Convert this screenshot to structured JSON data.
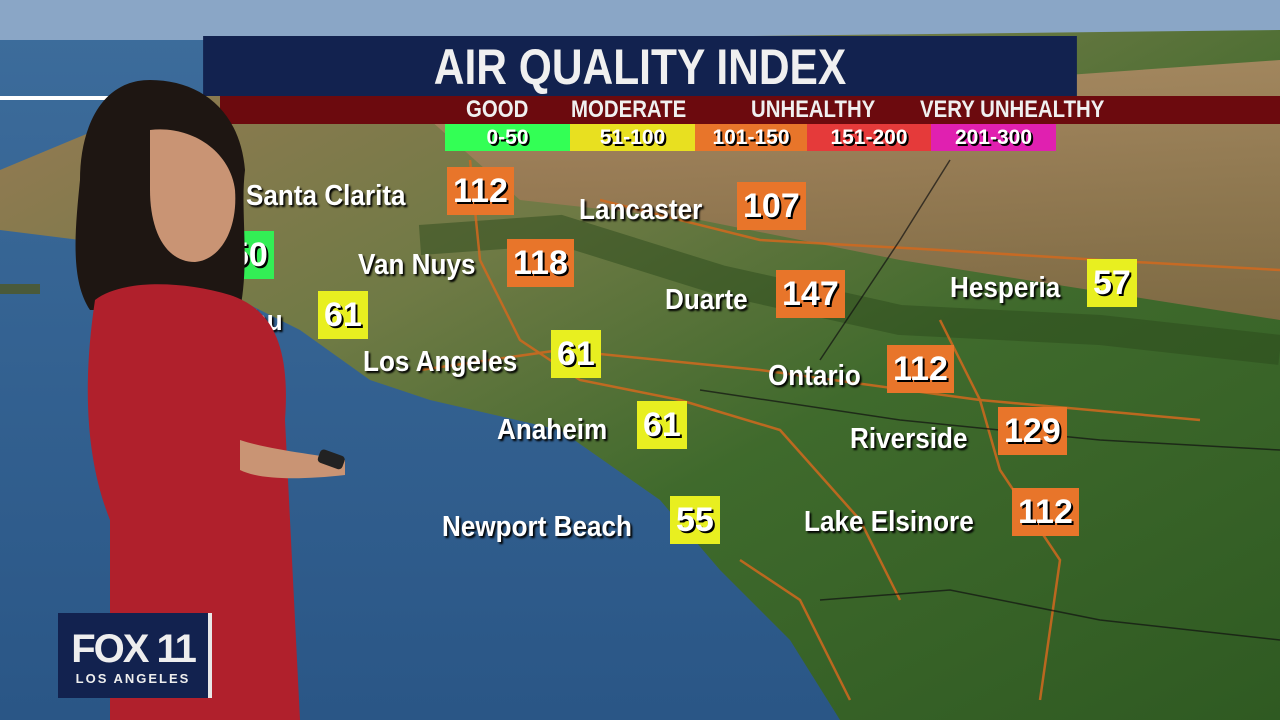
{
  "title": "AIR QUALITY INDEX",
  "colors": {
    "title_bg": "#12224f",
    "category_bg": "#6c0a0e",
    "good": "#33ff55",
    "moderate": "#e8e020",
    "unhealthy_sg": "#e8752a",
    "unhealthy": "#e53a3a",
    "very_unhealthy": "#e020b0"
  },
  "categories": [
    {
      "label": "GOOD"
    },
    {
      "label": "MODERATE"
    },
    {
      "label": "UNHEALTHY"
    },
    {
      "label": "VERY UNHEALTHY"
    }
  ],
  "ranges": [
    {
      "label": "0-50",
      "color": "#33ff55"
    },
    {
      "label": "51-100",
      "color": "#e8e020"
    },
    {
      "label": "101-150",
      "color": "#e8752a"
    },
    {
      "label": "151-200",
      "color": "#e53a3a"
    },
    {
      "label": "201-300",
      "color": "#e020b0"
    }
  ],
  "cities": [
    {
      "name": "Santa Clarita",
      "aqi": "112",
      "color": "#e8752a"
    },
    {
      "name": "Lancaster",
      "aqi": "107",
      "color": "#e8752a"
    },
    {
      "name": "",
      "aqi": "50",
      "color": "#33ee55"
    },
    {
      "name": "Van Nuys",
      "aqi": "118",
      "color": "#e8752a"
    },
    {
      "name": "Malibu",
      "aqi": "61",
      "color": "#e8ef20"
    },
    {
      "name": "Duarte",
      "aqi": "147",
      "color": "#e8752a"
    },
    {
      "name": "Hesperia",
      "aqi": "57",
      "color": "#e8ef20"
    },
    {
      "name": "Los Angeles",
      "aqi": "61",
      "color": "#e8ef20"
    },
    {
      "name": "Ontario",
      "aqi": "112",
      "color": "#e8752a"
    },
    {
      "name": "Anaheim",
      "aqi": "61",
      "color": "#e8ef20"
    },
    {
      "name": "Riverside",
      "aqi": "129",
      "color": "#e8752a"
    },
    {
      "name": "Newport Beach",
      "aqi": "55",
      "color": "#e8ef20"
    },
    {
      "name": "Lake Elsinore",
      "aqi": "112",
      "color": "#e8752a"
    }
  ],
  "logo": {
    "name": "FOX 11",
    "subtitle": "LOS ANGELES"
  }
}
